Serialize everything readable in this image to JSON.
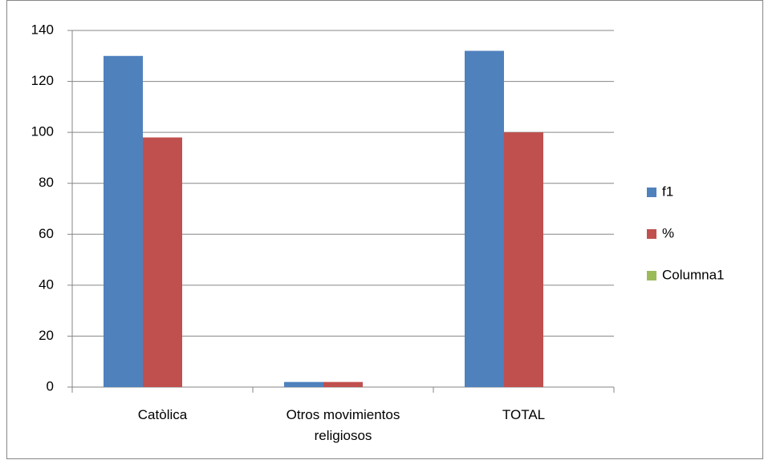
{
  "chart_data": {
    "type": "bar",
    "categories": [
      "Catòlica",
      "Otros movimientos religiosos",
      "TOTAL"
    ],
    "series": [
      {
        "name": "f1",
        "color": "#4f81bd",
        "values": [
          130,
          2,
          132
        ]
      },
      {
        "name": "%",
        "color": "#c0504d",
        "values": [
          98,
          2,
          100
        ]
      },
      {
        "name": "Columna1",
        "color": "#9bbb59",
        "values": [
          null,
          null,
          null
        ]
      }
    ],
    "ylim": [
      0,
      140
    ],
    "yticks": [
      0,
      20,
      40,
      60,
      80,
      100,
      120,
      140
    ],
    "grid": true,
    "legend": "right"
  }
}
